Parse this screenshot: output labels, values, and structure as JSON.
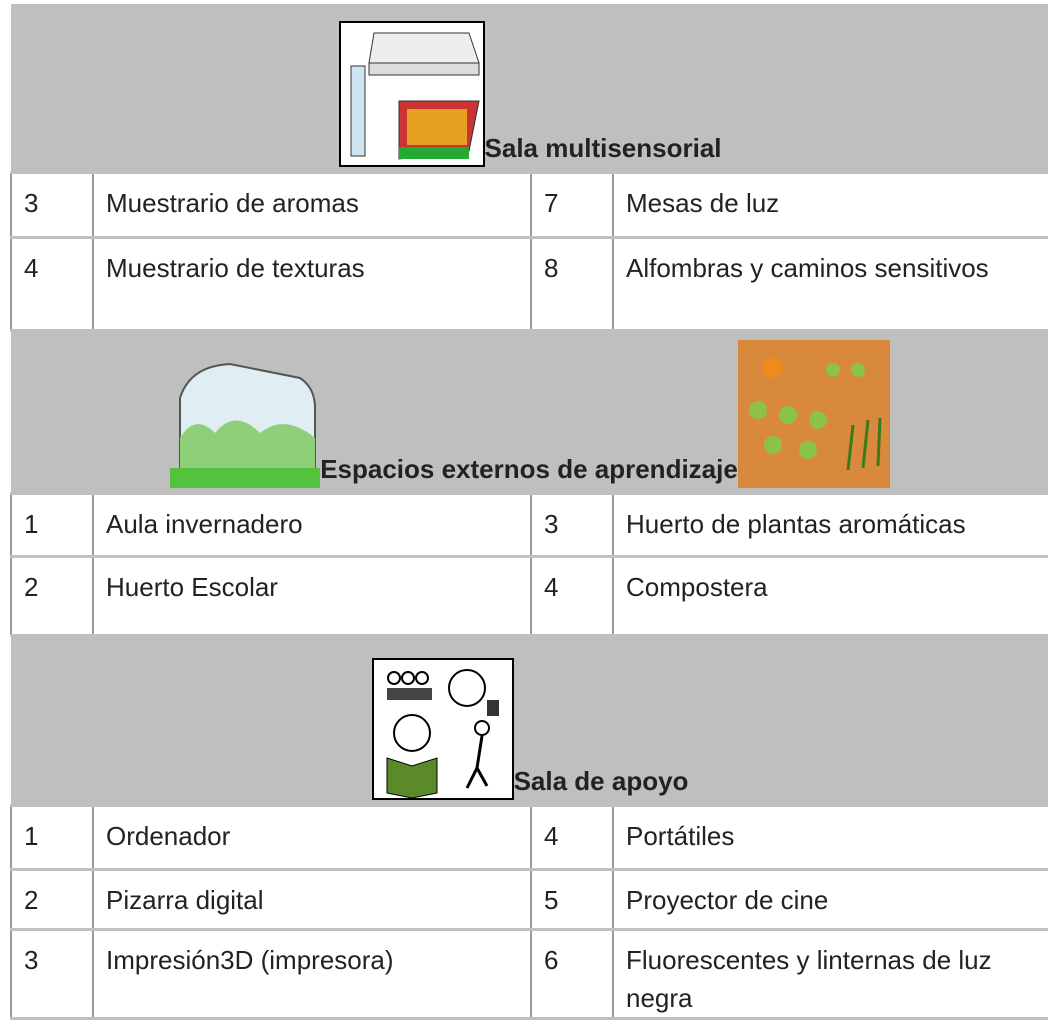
{
  "sections": [
    {
      "title": "Sala multisensorial",
      "rows": [
        [
          "3",
          "Muestrario de aromas",
          "7",
          "Mesas de luz"
        ],
        [
          "4",
          "Muestrario de texturas",
          "8",
          "Alfombras y caminos sensitivos"
        ]
      ]
    },
    {
      "title": "Espacios externos de aprendizaje",
      "rows": [
        [
          "1",
          "Aula invernadero",
          "3",
          "Huerto de plantas aromáticas"
        ],
        [
          "2",
          "Huerto Escolar",
          "4",
          "Compostera"
        ]
      ]
    },
    {
      "title": "Sala de apoyo",
      "rows": [
        [
          "1",
          "Ordenador",
          "4",
          "Portátiles"
        ],
        [
          "2",
          "Pizarra digital",
          "5",
          "Proyector de cine"
        ],
        [
          "3",
          "Impresión3D (impresora)",
          "6",
          "Fluorescentes y linternas de luz negra"
        ]
      ]
    }
  ]
}
